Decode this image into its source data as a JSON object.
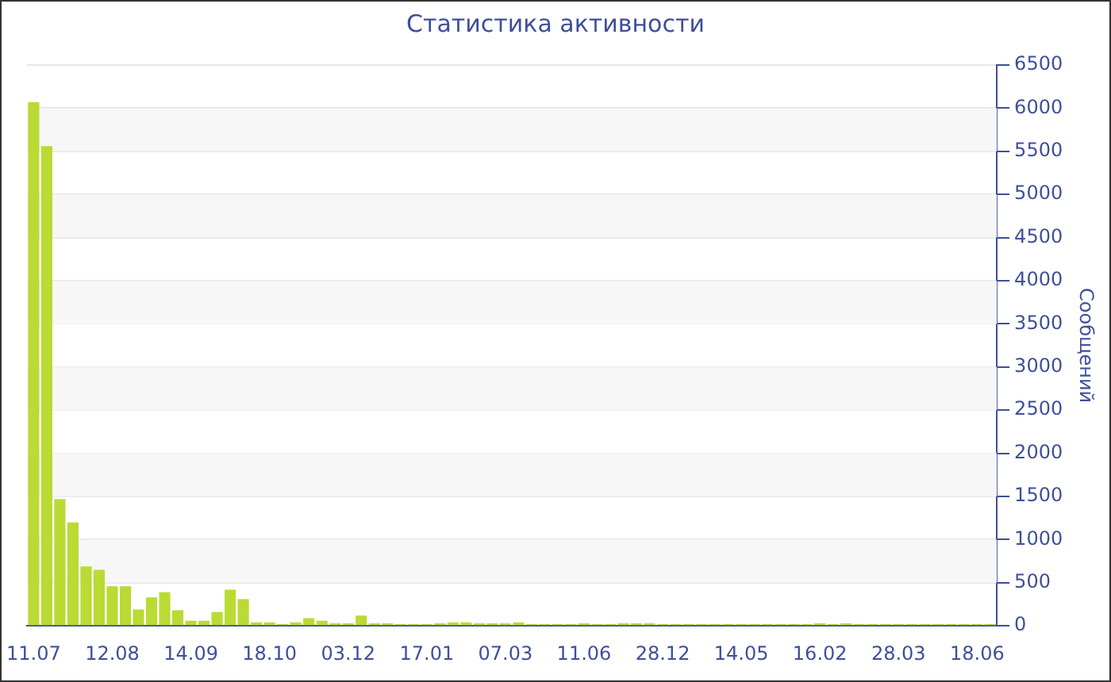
{
  "chart_data": {
    "type": "bar",
    "title": "Статистика активности",
    "ylabel": "Сообщений",
    "categories": [
      "11.07",
      null,
      null,
      null,
      null,
      null,
      "12.08",
      null,
      null,
      null,
      null,
      null,
      "14.09",
      null,
      null,
      null,
      null,
      null,
      "18.10",
      null,
      null,
      null,
      null,
      null,
      "03.12",
      null,
      null,
      null,
      null,
      null,
      "17.01",
      null,
      null,
      null,
      null,
      null,
      "07.03",
      null,
      null,
      null,
      null,
      null,
      "11.06",
      null,
      null,
      null,
      null,
      null,
      "28.12",
      null,
      null,
      null,
      null,
      null,
      "14.05",
      null,
      null,
      null,
      null,
      null,
      "16.02",
      null,
      null,
      null,
      null,
      null,
      "28.03",
      null,
      null,
      null,
      null,
      null,
      "18.06",
      null
    ],
    "values": [
      6070,
      5560,
      1470,
      1200,
      690,
      650,
      460,
      460,
      190,
      330,
      390,
      180,
      60,
      60,
      160,
      420,
      310,
      40,
      40,
      20,
      40,
      90,
      60,
      30,
      30,
      120,
      30,
      30,
      20,
      20,
      20,
      30,
      40,
      40,
      30,
      30,
      30,
      40,
      20,
      20,
      20,
      20,
      30,
      20,
      20,
      30,
      30,
      30,
      20,
      20,
      20,
      20,
      20,
      20,
      20,
      20,
      20,
      20,
      20,
      20,
      30,
      20,
      30,
      20,
      20,
      20,
      20,
      20,
      20,
      20,
      20,
      20,
      20,
      20
    ],
    "color": "#bada34",
    "ylim": [
      0,
      6500
    ],
    "yticks": [
      0,
      500,
      1000,
      1500,
      2000,
      2500,
      3000,
      3500,
      4000,
      4500,
      5000,
      5500,
      6000,
      6500
    ],
    "grid": "y"
  }
}
